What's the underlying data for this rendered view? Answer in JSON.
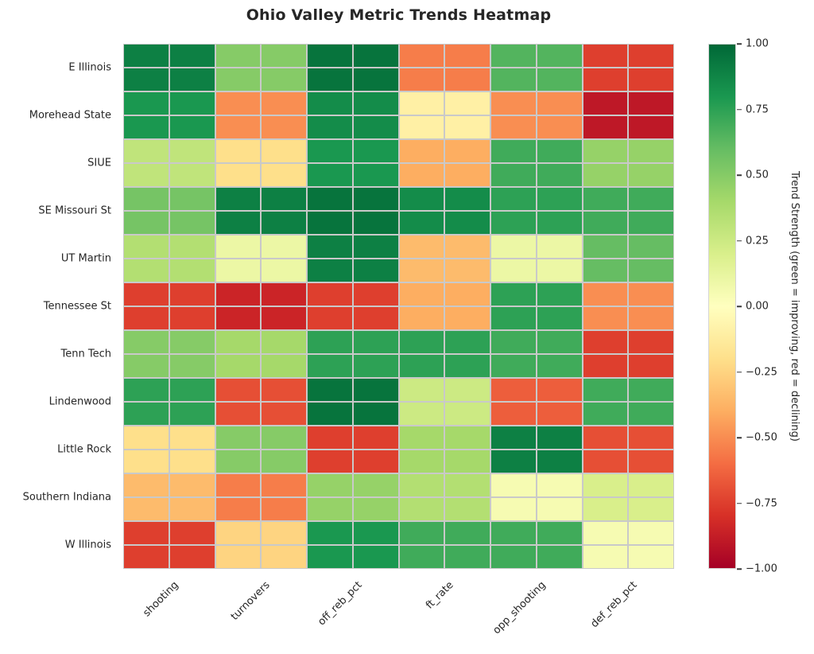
{
  "title": "Ohio Valley Metric Trends Heatmap",
  "chart_data": {
    "type": "heatmap",
    "title": "Ohio Valley Metric Trends Heatmap",
    "rows": [
      "E Illinois",
      "Morehead State",
      "SIUE",
      "SE Missouri St",
      "UT Martin",
      "Tennessee St",
      "Tenn Tech",
      "Lindenwood",
      "Little Rock",
      "Southern Indiana",
      "W Illinois"
    ],
    "columns": [
      "shooting",
      "turnovers",
      "off_reb_pct",
      "ft_rate",
      "opp_shooting",
      "def_reb_pct"
    ],
    "values": [
      [
        0.9,
        0.5,
        0.95,
        -0.55,
        0.65,
        -0.75
      ],
      [
        0.8,
        -0.5,
        0.85,
        -0.1,
        -0.5,
        -0.9
      ],
      [
        0.3,
        -0.2,
        0.8,
        -0.4,
        0.7,
        0.45
      ],
      [
        0.55,
        0.9,
        0.95,
        0.85,
        0.75,
        0.7
      ],
      [
        0.35,
        0.1,
        0.9,
        -0.35,
        0.1,
        0.6
      ],
      [
        -0.75,
        -0.85,
        -0.75,
        -0.4,
        0.75,
        -0.5
      ],
      [
        0.5,
        0.4,
        0.75,
        0.75,
        0.7,
        -0.75
      ],
      [
        0.75,
        -0.7,
        0.95,
        0.25,
        -0.65,
        0.7
      ],
      [
        -0.2,
        0.5,
        -0.75,
        0.4,
        0.9,
        -0.7
      ],
      [
        -0.35,
        -0.55,
        0.45,
        0.35,
        0.05,
        0.2
      ],
      [
        -0.75,
        -0.25,
        0.8,
        0.7,
        0.7,
        0.05
      ]
    ],
    "vmin": -1.0,
    "vmax": 1.0,
    "colormap": "RdYlGn",
    "grid": true,
    "colorbar": {
      "label": "Trend Strength (green = improving, red = declining)",
      "ticks": [
        "1.00",
        "0.75",
        "0.50",
        "0.25",
        "0.00",
        "−0.25",
        "−0.50",
        "−0.75",
        "−1.00"
      ],
      "tick_values": [
        1.0,
        0.75,
        0.5,
        0.25,
        0.0,
        -0.25,
        -0.5,
        -0.75,
        -1.0
      ]
    }
  },
  "colors": {
    "background": "#ffffff",
    "text": "#262626",
    "grid_line": "#c9c9c9",
    "colormap_stops": {
      "-1.0": "#a50026",
      "-0.8": "#d73027",
      "-0.6": "#f46d43",
      "-0.4": "#fdae61",
      "-0.2": "#fee08b",
      "0.0": "#ffffbf",
      "0.2": "#d9ef8b",
      "0.4": "#a6d96a",
      "0.6": "#66bd63",
      "0.8": "#1a9850",
      "1.0": "#006837"
    }
  }
}
